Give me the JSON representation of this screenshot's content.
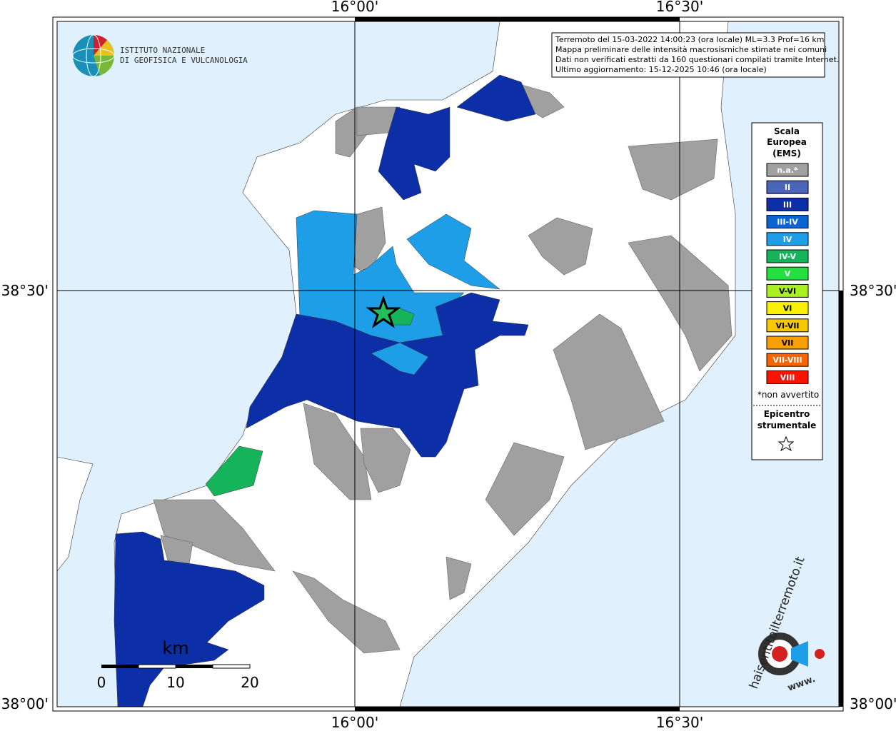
{
  "header": {
    "institute": [
      "ISTITUTO NAZIONALE",
      "DI GEOFISICA E VULCANOLOGIA"
    ]
  },
  "info": [
    "Terremoto del 15-03-2022 14:00:23 (ora locale) ML=3.3 Prof=16 km",
    "Mappa preliminare delle intensità macrosismiche stimate nei comuni",
    "Dati non verificati estratti da 160 questionari compilati tramite Internet.",
    "Ultimo aggiornamento: 15-12-2025 10:46 (ora locale)"
  ],
  "axes": {
    "longitude": [
      "16°00'",
      "16°30'"
    ],
    "latitude": [
      "38°30'",
      "38°00'"
    ]
  },
  "legend": {
    "title": [
      "Scala",
      "Europea",
      "(EMS)"
    ],
    "items": [
      {
        "label": "n.a.*",
        "color": "#a0a0a0"
      },
      {
        "label": "II",
        "color": "#4a64b8"
      },
      {
        "label": "III",
        "color": "#0c2fa8"
      },
      {
        "label": "III-IV",
        "color": "#0a64d2"
      },
      {
        "label": "IV",
        "color": "#1e9ee6"
      },
      {
        "label": "IV-V",
        "color": "#16b45a"
      },
      {
        "label": "V",
        "color": "#22e040"
      },
      {
        "label": "V-VI",
        "color": "#a8f020"
      },
      {
        "label": "VI",
        "color": "#f8f000"
      },
      {
        "label": "VI-VII",
        "color": "#f8c800"
      },
      {
        "label": "VII",
        "color": "#f8a000"
      },
      {
        "label": "VII-VIII",
        "color": "#f86400"
      },
      {
        "label": "VIII",
        "color": "#f81400"
      }
    ],
    "note": "*non avvertito",
    "epicenter": [
      "Epicentro",
      "strumentale"
    ]
  },
  "scale_bar": {
    "unit": "km",
    "ticks": [
      0,
      10,
      20
    ]
  },
  "logo": {
    "site": "haisentitoilterremoto.it",
    "prefix": "www."
  }
}
